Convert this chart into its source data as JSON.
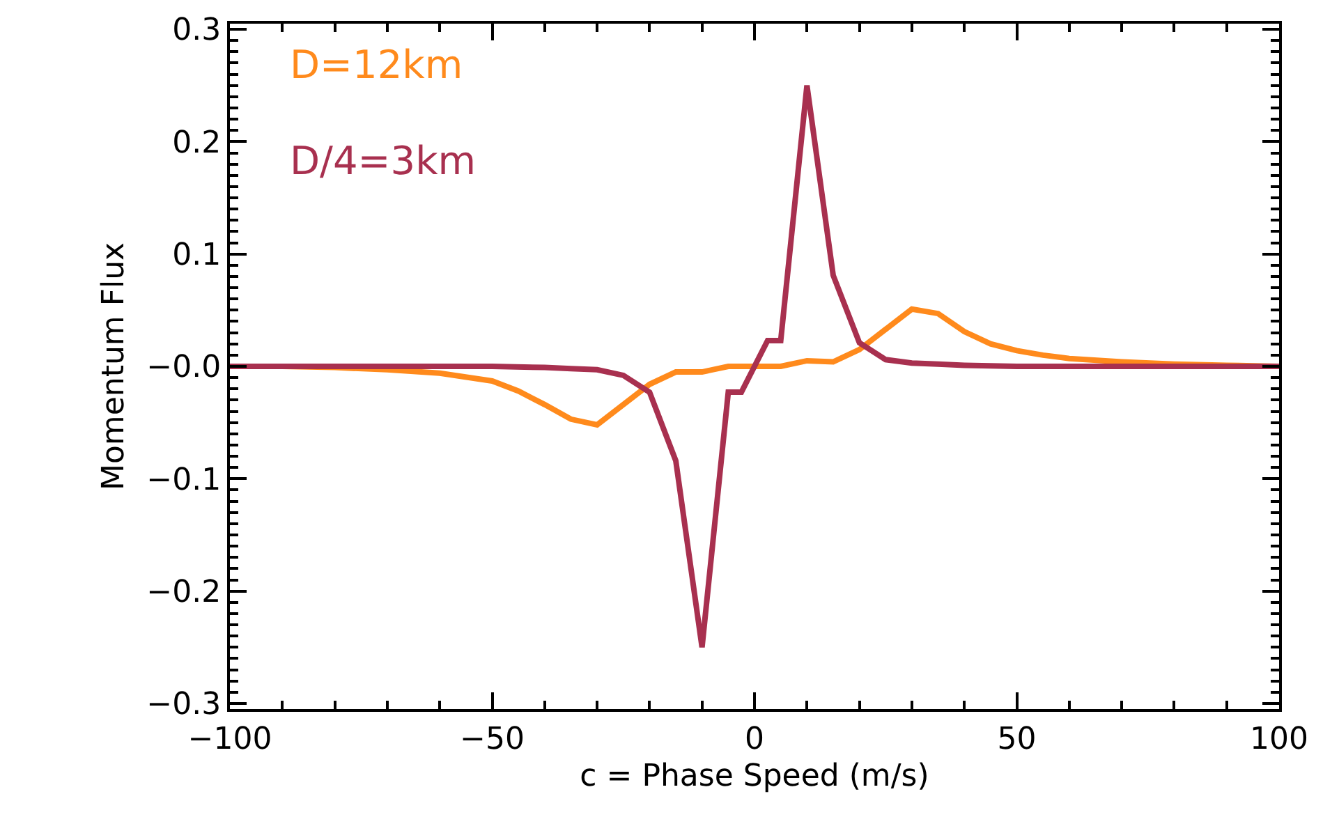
{
  "chart_data": {
    "type": "line",
    "xlabel": "c = Phase Speed (m/s)",
    "ylabel": "Momentum Flux",
    "xlim": [
      -100,
      100
    ],
    "xticks": [
      -100,
      -50,
      0,
      50,
      100
    ],
    "ylim": [
      -0.305,
      0.305
    ],
    "yticks": [
      {
        "value": -0.3,
        "label": "−0.3"
      },
      {
        "value": -0.2,
        "label": "−0.2"
      },
      {
        "value": -0.1,
        "label": "−0.1"
      },
      {
        "value": 0,
        "label": "−0.0"
      },
      {
        "value": 0.1,
        "label": "0.1"
      },
      {
        "value": 0.2,
        "label": "0.2"
      },
      {
        "value": 0.3,
        "label": "0.3"
      }
    ],
    "legend": false,
    "marker": "none",
    "line_style": "solid",
    "series": [
      {
        "name": "D=12km",
        "color": "#ff8a1c",
        "x": [
          -100,
          -90,
          -80,
          -70,
          -60,
          -50,
          -45,
          -40,
          -35,
          -30,
          -20,
          -15,
          -10,
          -5,
          0,
          5,
          10,
          15,
          20,
          25,
          30,
          35,
          40,
          45,
          50,
          55,
          60,
          70,
          80,
          90,
          100
        ],
        "values": [
          0,
          0,
          -0.001,
          -0.003,
          -0.006,
          -0.013,
          -0.022,
          -0.034,
          -0.047,
          -0.052,
          -0.016,
          -0.005,
          -0.005,
          0,
          0,
          0,
          0.005,
          0.004,
          0.015,
          0.033,
          0.051,
          0.047,
          0.031,
          0.02,
          0.014,
          0.01,
          0.007,
          0.004,
          0.002,
          0.001,
          0
        ]
      },
      {
        "name": "D/4=3km",
        "color": "#a8304f",
        "x": [
          -100,
          -50,
          -40,
          -35,
          -30,
          -25,
          -20,
          -15,
          -10,
          -5,
          -2.5,
          2.5,
          5,
          10,
          15,
          20,
          25,
          30,
          35,
          40,
          50,
          100
        ],
        "values": [
          0,
          0,
          -0.001,
          -0.002,
          -0.003,
          -0.008,
          -0.023,
          -0.084,
          -0.25,
          -0.023,
          -0.023,
          0.023,
          0.023,
          0.25,
          0.081,
          0.021,
          0.006,
          0.003,
          0.002,
          0.001,
          0,
          0
        ]
      }
    ]
  }
}
